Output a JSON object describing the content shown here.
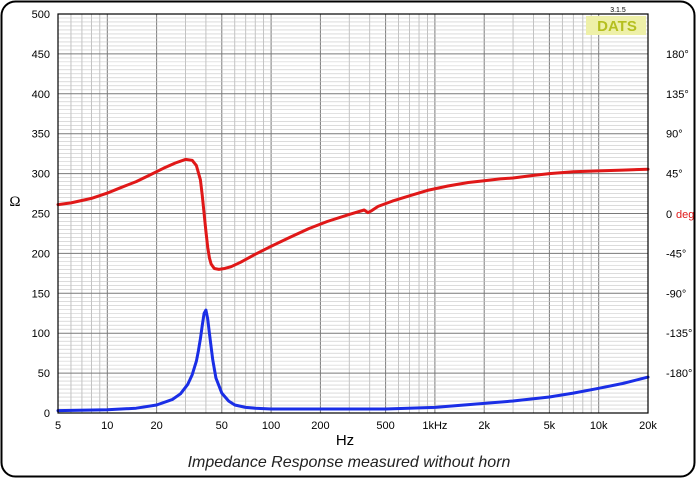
{
  "chart_data": {
    "type": "line",
    "title": "",
    "caption": "Impedance Response measured without horn",
    "xlabel": "Hz",
    "ylabel": "Ω",
    "y2label": "deg",
    "y2label_zero": "0",
    "x_scale": "log",
    "xlim": [
      5,
      20000
    ],
    "ylim": [
      0,
      500
    ],
    "y2lim": [
      -225,
      225
    ],
    "grid": true,
    "badge": "DATS",
    "version": "3.1.5",
    "x_ticks": [
      {
        "value": 5,
        "label": "5"
      },
      {
        "value": 10,
        "label": "10"
      },
      {
        "value": 20,
        "label": "20"
      },
      {
        "value": 50,
        "label": "50"
      },
      {
        "value": 100,
        "label": "100"
      },
      {
        "value": 200,
        "label": "200"
      },
      {
        "value": 500,
        "label": "500"
      },
      {
        "value": 1000,
        "label": "1kHz"
      },
      {
        "value": 2000,
        "label": "2k"
      },
      {
        "value": 5000,
        "label": "5k"
      },
      {
        "value": 10000,
        "label": "10k"
      },
      {
        "value": 20000,
        "label": "20k"
      }
    ],
    "y_ticks": [
      "0",
      "50",
      "100",
      "150",
      "200",
      "250",
      "300",
      "350",
      "400",
      "450",
      "500"
    ],
    "y2_ticks": [
      {
        "value": -180,
        "label": "-180°"
      },
      {
        "value": -135,
        "label": "-135°"
      },
      {
        "value": -90,
        "label": "-90°"
      },
      {
        "value": -45,
        "label": "-45°"
      },
      {
        "value": 45,
        "label": "45°"
      },
      {
        "value": 90,
        "label": "90°"
      },
      {
        "value": 135,
        "label": "135°"
      },
      {
        "value": 180,
        "label": "180°"
      }
    ],
    "series": [
      {
        "color": "#e01818",
        "axis": "right",
        "x": [
          5,
          6,
          8,
          10,
          12,
          15,
          18,
          22,
          26,
          30,
          33,
          35,
          37,
          38,
          39,
          40,
          41,
          42,
          43,
          45,
          48,
          52,
          57,
          65,
          80,
          100,
          130,
          170,
          220,
          300,
          370,
          390,
          410,
          450,
          550,
          700,
          900,
          1200,
          1600,
          2000,
          2500,
          3000,
          4000,
          5000,
          7000,
          10000,
          14000,
          20000
        ],
        "y": [
          10,
          12,
          17,
          23,
          29,
          36,
          43,
          51,
          57,
          61,
          60,
          54,
          38,
          20,
          0,
          -20,
          -38,
          -50,
          -57,
          -62,
          -63,
          -62,
          -60,
          -55,
          -46,
          -37,
          -27,
          -17,
          -9,
          -1,
          4,
          1,
          3,
          8,
          14,
          20,
          26,
          31,
          35,
          37,
          39,
          40,
          43,
          45,
          47,
          48,
          49,
          50
        ]
      },
      {
        "color": "#1a2ee6",
        "axis": "left",
        "x": [
          5,
          10,
          15,
          20,
          25,
          28,
          31,
          33,
          35,
          36,
          37,
          38,
          39,
          40,
          41,
          42,
          44,
          46,
          50,
          55,
          60,
          70,
          80,
          100,
          150,
          200,
          300,
          500,
          1000,
          2000,
          3000,
          5000,
          7000,
          10000,
          14000,
          20000
        ],
        "y": [
          3,
          4,
          6,
          10,
          17,
          24,
          36,
          48,
          65,
          78,
          93,
          110,
          125,
          129,
          118,
          100,
          67,
          44,
          25,
          15,
          10,
          7,
          6,
          5,
          5,
          5,
          5,
          5,
          7,
          12,
          15,
          20,
          25,
          31,
          37,
          45
        ]
      }
    ]
  }
}
